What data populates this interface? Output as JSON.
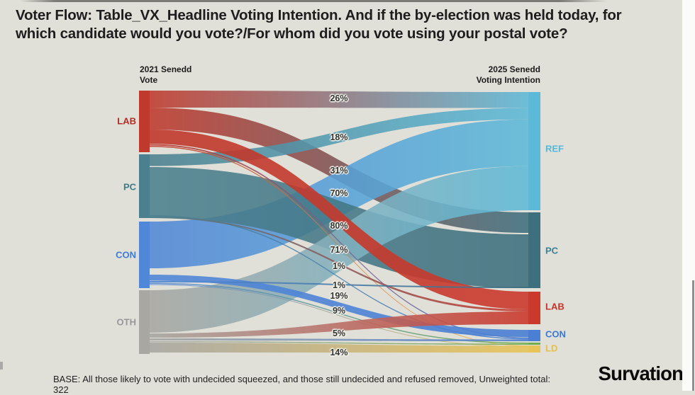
{
  "title": "Voter Flow: Table_VX_Headline Voting Intention. And if the by-election was held today, for which candidate would you vote?/For whom did you vote using your postal vote?",
  "axis_headers": {
    "left": {
      "line1": "2021 Senedd",
      "line2": "Vote"
    },
    "right": {
      "line1": "2025 Senedd",
      "line2": "Voting Intention"
    }
  },
  "chart_data": {
    "type": "sankey",
    "left_axis_title": "2021 Senedd Vote",
    "right_axis_title": "2025 Senedd Voting Intention",
    "left_nodes": [
      {
        "id": "LAB",
        "label": "LAB",
        "color": "#bf392c",
        "label_color": "#b02e24"
      },
      {
        "id": "PC",
        "label": "PC",
        "color": "#4b808e",
        "label_color": "#3e7a8a"
      },
      {
        "id": "CON",
        "label": "CON",
        "color": "#5187d7",
        "label_color": "#3d7bd9"
      },
      {
        "id": "OTH",
        "label": "OTH",
        "color": "#a8a7a2",
        "label_color": "#97979a"
      }
    ],
    "right_nodes": [
      {
        "id": "REF",
        "label": "REF",
        "color": "#5db9d8",
        "label_color": "#56b8d6"
      },
      {
        "id": "PC",
        "label": "PC",
        "color": "#3d6f7e",
        "label_color": "#3a7f94"
      },
      {
        "id": "LAB",
        "label": "LAB",
        "color": "#cb392d",
        "label_color": "#c4342b"
      },
      {
        "id": "CON",
        "label": "CON",
        "color": "#4a7fd3",
        "label_color": "#3d77d6"
      },
      {
        "id": "GRN",
        "label": "",
        "color": "#70ad4c",
        "label_color": "#70ad4c"
      },
      {
        "id": "LD",
        "label": "LD",
        "color": "#e8c358",
        "label_color": "#e5bf4e"
      }
    ],
    "units": "percent of each 2021 party's voters",
    "flows": [
      {
        "source": "LAB",
        "target": "REF",
        "value": 26,
        "label": "26%"
      },
      {
        "source": "PC",
        "target": "REF",
        "value": 18,
        "label": "18%"
      },
      {
        "source": "LAB",
        "target": "PC",
        "value": 31,
        "label": "31%"
      },
      {
        "source": "CON",
        "target": "REF",
        "value": 70,
        "label": "70%"
      },
      {
        "source": "PC",
        "target": "PC",
        "value": 80,
        "label": "80%"
      },
      {
        "source": "OTH",
        "target": "REF",
        "value": 71,
        "label": "71%"
      },
      {
        "source": "PC",
        "target": "LAB",
        "value": 1,
        "label": "1%"
      },
      {
        "source": "CON",
        "target": "PC",
        "value": 1,
        "label": "1%"
      },
      {
        "source": "LAB",
        "target": "LAB",
        "value": 19,
        "label": "19%"
      },
      {
        "source": "CON",
        "target": "CON",
        "value": 9,
        "label": "9%"
      },
      {
        "source": "OTH",
        "target": "LAB",
        "value": 5,
        "label": "5%"
      },
      {
        "source": "OTH",
        "target": "LD",
        "value": 14,
        "label": "14%"
      }
    ]
  },
  "base_note": "BASE: All those likely to vote with undecided squeezed, and those still undecided and refused removed, Unweighted total: 322",
  "logo_text": "Survation.",
  "colors": {
    "background": "#e1e0d8",
    "label_halo": "#f4f4ee",
    "text": "#1d1d1d"
  }
}
